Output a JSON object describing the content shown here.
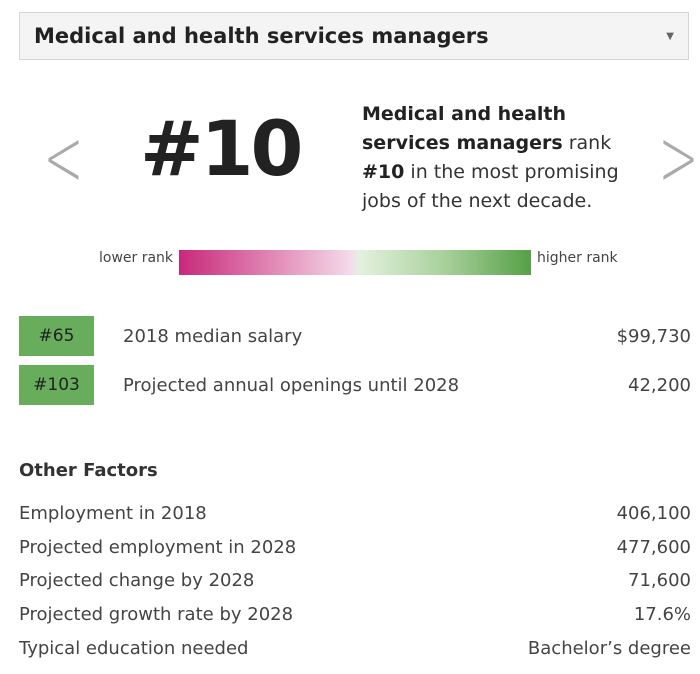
{
  "select": {
    "value": "Medical and health services managers"
  },
  "rank": {
    "number": "#10",
    "desc_bold": "Medical and health services managers",
    "desc_mid": " rank ",
    "desc_rank": "#10",
    "desc_end": " in the most promising jobs of the next decade."
  },
  "legend": {
    "low": "lower rank",
    "high": "higher rank"
  },
  "ranked": [
    {
      "badge": "#65",
      "label": "2018 median salary",
      "value": "$99,730"
    },
    {
      "badge": "#103",
      "label": "Projected annual openings until 2028",
      "value": "42,200"
    }
  ],
  "other": {
    "title": "Other Factors",
    "rows": [
      {
        "label": "Employment in 2018",
        "value": "406,100"
      },
      {
        "label": "Projected employment in 2028",
        "value": "477,600"
      },
      {
        "label": "Projected change by 2028",
        "value": "71,600"
      },
      {
        "label": "Projected growth rate by 2028",
        "value": "17.6%"
      },
      {
        "label": "Typical education needed",
        "value": "Bachelor’s degree"
      }
    ]
  }
}
